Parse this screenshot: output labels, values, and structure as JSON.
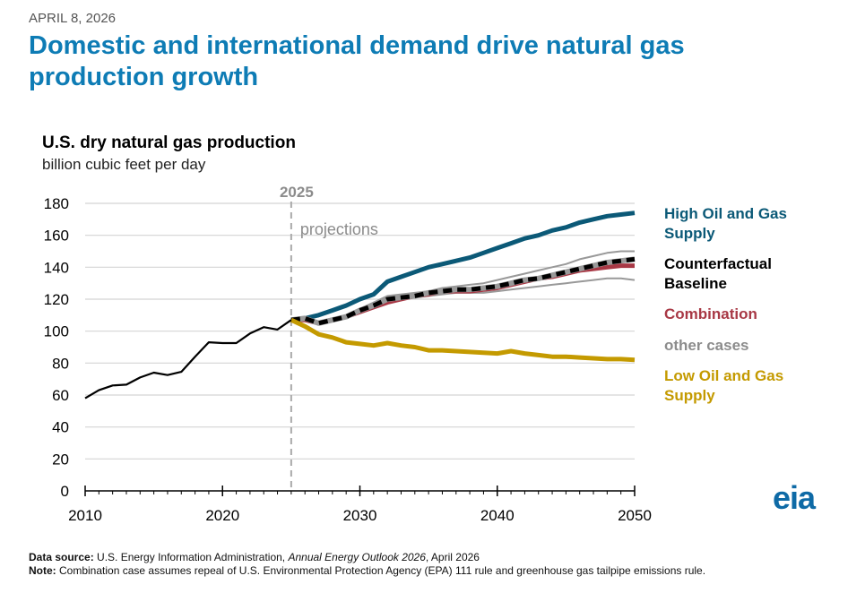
{
  "header": {
    "date": "APRIL 8, 2026",
    "title": "Domestic and international demand drive natural gas production growth"
  },
  "chart_data": {
    "type": "line",
    "title": "U.S. dry natural gas production",
    "ylabel": "billion cubic feet per day",
    "xlim": [
      2010,
      2050
    ],
    "ylim": [
      0,
      180
    ],
    "xticks": [
      2010,
      2020,
      2030,
      2040,
      2050
    ],
    "yticks": [
      0,
      20,
      40,
      60,
      80,
      100,
      120,
      140,
      160,
      180
    ],
    "grid": true,
    "annotation": {
      "year_label": "2025",
      "text": "projections",
      "year": 2025
    },
    "history": {
      "x": [
        2010,
        2011,
        2012,
        2013,
        2014,
        2015,
        2016,
        2017,
        2018,
        2019,
        2020,
        2021,
        2022,
        2023,
        2024,
        2025
      ],
      "values": [
        58,
        63,
        66,
        66.5,
        71,
        74,
        72.5,
        74.5,
        84,
        93,
        92.5,
        92.5,
        98.5,
        102.5,
        101,
        107
      ],
      "color": "#000000"
    },
    "projection_x": [
      2025,
      2026,
      2027,
      2028,
      2029,
      2030,
      2031,
      2032,
      2033,
      2034,
      2035,
      2036,
      2037,
      2038,
      2039,
      2040,
      2041,
      2042,
      2043,
      2044,
      2045,
      2046,
      2047,
      2048,
      2049,
      2050
    ],
    "series": [
      {
        "name": "other cases (upper)",
        "legend": false,
        "color": "#999999",
        "values": [
          107,
          108,
          106,
          108,
          110,
          114,
          118,
          122,
          123,
          124,
          125,
          127,
          128,
          129,
          130,
          132,
          134,
          136,
          138,
          140,
          142,
          145,
          147,
          149,
          150,
          150
        ]
      },
      {
        "name": "other cases (lower)",
        "legend": false,
        "color": "#999999",
        "values": [
          107,
          107,
          105,
          107,
          109,
          112,
          115,
          119,
          120,
          121,
          122,
          123,
          124,
          124,
          124,
          125,
          126,
          127,
          128,
          129,
          130,
          131,
          132,
          133,
          133,
          132
        ]
      },
      {
        "name": "High Oil and Gas Supply",
        "color": "#0b5977",
        "values": [
          107,
          108,
          110,
          113,
          116,
          120,
          123,
          131,
          134,
          137,
          140,
          142,
          144,
          146,
          149,
          152,
          155,
          158,
          160,
          163,
          165,
          168,
          170,
          172,
          173,
          174
        ]
      },
      {
        "name": "Combination",
        "color": "#a83845",
        "values": [
          107,
          107,
          105,
          107,
          109,
          112,
          115,
          118,
          120,
          122,
          123,
          125,
          125,
          125,
          126,
          127,
          129,
          131,
          133,
          134,
          136,
          138,
          139,
          140,
          141,
          141
        ]
      },
      {
        "name": "Counterfactual Baseline",
        "color": "#000000",
        "dashed": true,
        "values": [
          107,
          108,
          105,
          107,
          109,
          113,
          116,
          120,
          121,
          122,
          124,
          125,
          126,
          126,
          127,
          128,
          130,
          132,
          133,
          135,
          137,
          139,
          141,
          143,
          144,
          145
        ]
      },
      {
        "name": "Low Oil and Gas Supply",
        "color": "#c49a00",
        "values": [
          107,
          103,
          98,
          96,
          93,
          92,
          91,
          92.5,
          91,
          90,
          88,
          88,
          87.5,
          87,
          86.5,
          86,
          87.5,
          86,
          85,
          84,
          84,
          83.5,
          83,
          82.5,
          82.5,
          82
        ]
      }
    ],
    "legend": [
      {
        "label": "High Oil and Gas Supply",
        "color": "#0b5977"
      },
      {
        "label": "Counterfactual Baseline",
        "color": "#000000"
      },
      {
        "label": "Combination",
        "color": "#a83845"
      },
      {
        "label": "other cases",
        "color": "#8c8c8c"
      },
      {
        "label": "Low Oil and Gas Supply",
        "color": "#c49a00"
      }
    ]
  },
  "footer": {
    "source_label": "Data source:",
    "source_text": " U.S. Energy Information Administration, ",
    "source_italic": "Annual Energy Outlook 2026",
    "source_end": ", April 2026",
    "note_label": "Note:",
    "note_text": " Combination case assumes repeal of U.S. Environmental Protection Agency (EPA) 111 rule and greenhouse gas tailpipe emissions rule."
  },
  "logo": "eia"
}
